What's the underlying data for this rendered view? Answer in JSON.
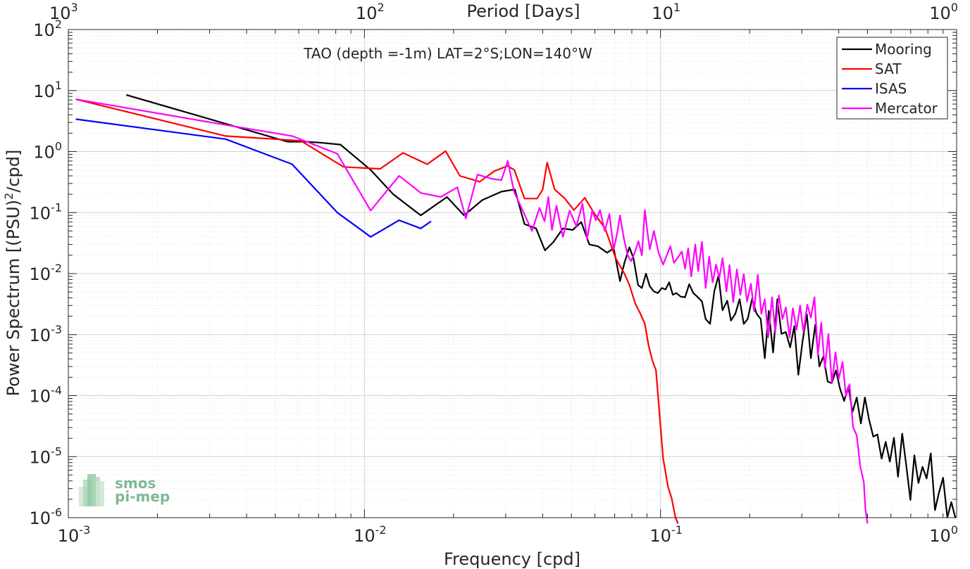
{
  "chart_data": {
    "type": "line",
    "title": "TAO (depth =-1m) LAT=2°S;LON=140°W",
    "xlabel": "Frequency [cpd]",
    "ylabel": "Power Spectrum [(PSU)",
    "ylabel_sup": "2",
    "ylabel_tail": "/cpd]",
    "top_xlabel": "Period [Days]",
    "xscale": "log",
    "yscale": "log",
    "xlim": [
      0.001,
      1
    ],
    "ylim": [
      1e-06,
      100
    ],
    "grid": true,
    "legend_position": "top-right",
    "x_ticks": [
      {
        "value": 0.001,
        "base": "10",
        "exp": "-3"
      },
      {
        "value": 0.01,
        "base": "10",
        "exp": "-2"
      },
      {
        "value": 0.1,
        "base": "10",
        "exp": "-1"
      },
      {
        "value": 1,
        "base": "10",
        "exp": "0"
      }
    ],
    "y_ticks": [
      {
        "value": 1e-06,
        "base": "10",
        "exp": "-6"
      },
      {
        "value": 1e-05,
        "base": "10",
        "exp": "-5"
      },
      {
        "value": 0.0001,
        "base": "10",
        "exp": "-4"
      },
      {
        "value": 0.001,
        "base": "10",
        "exp": "-3"
      },
      {
        "value": 0.01,
        "base": "10",
        "exp": "-2"
      },
      {
        "value": 0.1,
        "base": "10",
        "exp": "-1"
      },
      {
        "value": 1,
        "base": "10",
        "exp": "0"
      },
      {
        "value": 10,
        "base": "10",
        "exp": "1"
      },
      {
        "value": 100,
        "base": "10",
        "exp": "2"
      }
    ],
    "top_ticks": [
      {
        "period": 1000,
        "base": "10",
        "exp": "3"
      },
      {
        "period": 100,
        "base": "10",
        "exp": "2"
      },
      {
        "period": 10,
        "base": "10",
        "exp": "1"
      },
      {
        "period": 1,
        "base": "10",
        "exp": "0"
      }
    ],
    "series": [
      {
        "name": "Mooring",
        "color": "#000000",
        "x": [
          0.00157,
          0.0055,
          0.0063,
          0.0071,
          0.0083,
          0.0105,
          0.0125,
          0.0155,
          0.019,
          0.0217,
          0.025,
          0.029,
          0.0322,
          0.0347,
          0.038,
          0.0407,
          0.0435,
          0.0468,
          0.0505,
          0.054,
          0.0575,
          0.0615,
          0.066,
          0.0695,
          0.073,
          0.0755,
          0.0785,
          0.081,
          0.084,
          0.0865,
          0.0893,
          0.092,
          0.095,
          0.098,
          0.101,
          0.104,
          0.107,
          0.11,
          0.113,
          0.117,
          0.121,
          0.125,
          0.129,
          0.133,
          0.138,
          0.142,
          0.147,
          0.152,
          0.157,
          0.162,
          0.168,
          0.173,
          0.179,
          0.185,
          0.191,
          0.197,
          0.204,
          0.211,
          0.218,
          0.225,
          0.232,
          0.24,
          0.248,
          0.256,
          0.265,
          0.274,
          0.283,
          0.292,
          0.302,
          0.312,
          0.322,
          0.333,
          0.344,
          0.355,
          0.367,
          0.379,
          0.391,
          0.404,
          0.417,
          0.431,
          0.445,
          0.46,
          0.475,
          0.49,
          0.506,
          0.523,
          0.54,
          0.558,
          0.576,
          0.595,
          0.614,
          0.634,
          0.655,
          0.676,
          0.698,
          0.72,
          0.743,
          0.767,
          0.792,
          0.818,
          0.845,
          0.872,
          0.9,
          0.93,
          0.96,
          0.99
        ],
        "y": [
          8.5,
          1.45,
          1.45,
          1.4,
          1.3,
          0.5,
          0.2,
          0.09,
          0.18,
          0.09,
          0.16,
          0.22,
          0.24,
          0.065,
          0.055,
          0.024,
          0.033,
          0.055,
          0.052,
          0.07,
          0.03,
          0.028,
          0.022,
          0.026,
          0.0075,
          0.015,
          0.027,
          0.018,
          0.0065,
          0.0058,
          0.01,
          0.0062,
          0.0051,
          0.0048,
          0.0058,
          0.0055,
          0.0072,
          0.0045,
          0.0048,
          0.0042,
          0.0041,
          0.0067,
          0.0048,
          0.0042,
          0.0035,
          0.0018,
          0.0015,
          0.0052,
          0.0092,
          0.0025,
          0.0036,
          0.0017,
          0.0022,
          0.0038,
          0.0015,
          0.0018,
          0.0039,
          0.0022,
          0.0018,
          0.00041,
          0.00245,
          0.00051,
          0.0038,
          0.00103,
          0.0011,
          0.00062,
          0.00138,
          0.00022,
          0.00079,
          0.00216,
          0.00041,
          0.00145,
          0.0003,
          0.00044,
          0.00017,
          0.00016,
          0.00026,
          0.00013,
          8.2e-05,
          0.00014,
          5.4e-05,
          9.3e-05,
          3.5e-05,
          9.3e-05,
          4.1e-05,
          2.13e-05,
          2.31e-05,
          9.3e-06,
          1.75e-05,
          8.3e-06,
          2.04e-05,
          4.7e-06,
          2.38e-05,
          7.2e-06,
          1.95e-06,
          1.05e-05,
          3.7e-06,
          6.8e-06,
          4.4e-06,
          1.13e-05,
          1.33e-06,
          2.58e-06,
          4.5e-06,
          1.01e-06,
          1.8e-06,
          1e-06
        ]
      },
      {
        "name": "SAT",
        "color": "#ff0000",
        "x": [
          0.00106,
          0.0034,
          0.005,
          0.0061,
          0.0085,
          0.0113,
          0.0135,
          0.0163,
          0.0188,
          0.021,
          0.0245,
          0.0275,
          0.0304,
          0.0321,
          0.0347,
          0.0383,
          0.04,
          0.0414,
          0.0439,
          0.0475,
          0.051,
          0.0555,
          0.0595,
          0.065,
          0.0705,
          0.0755,
          0.0785,
          0.0822,
          0.0855,
          0.0885,
          0.0912,
          0.0938,
          0.0965,
          0.0995,
          0.102,
          0.106,
          0.109,
          0.1122,
          0.1145
        ],
        "y": [
          7.2,
          1.8,
          1.6,
          1.5,
          0.56,
          0.52,
          0.95,
          0.62,
          1.02,
          0.4,
          0.32,
          0.48,
          0.58,
          0.5,
          0.17,
          0.17,
          0.24,
          0.66,
          0.24,
          0.17,
          0.11,
          0.175,
          0.1,
          0.055,
          0.018,
          0.01,
          0.0065,
          0.0032,
          0.0022,
          0.0015,
          0.00065,
          0.00038,
          0.00026,
          4.2e-05,
          9.5e-06,
          3.2e-06,
          2.1e-06,
          1.02e-06,
          8e-07
        ]
      },
      {
        "name": "ISAS",
        "color": "#0000ff",
        "x": [
          0.00106,
          0.0034,
          0.0057,
          0.0081,
          0.0105,
          0.0131,
          0.0155,
          0.0168
        ],
        "y": [
          3.4,
          1.6,
          0.62,
          0.1,
          0.04,
          0.075,
          0.055,
          0.072
        ]
      },
      {
        "name": "Mercator",
        "color": "#ff00ff",
        "x": [
          0.00106,
          0.0033,
          0.0057,
          0.0081,
          0.0105,
          0.0131,
          0.0155,
          0.0181,
          0.0206,
          0.022,
          0.0241,
          0.0268,
          0.029,
          0.0305,
          0.032,
          0.0345,
          0.0368,
          0.039,
          0.0406,
          0.0418,
          0.043,
          0.0445,
          0.0468,
          0.0493,
          0.052,
          0.0545,
          0.0565,
          0.0588,
          0.0605,
          0.0625,
          0.0648,
          0.0672,
          0.0695,
          0.0715,
          0.073,
          0.0752,
          0.0775,
          0.0795,
          0.0818,
          0.0842,
          0.0865,
          0.0885,
          0.0905,
          0.092,
          0.095,
          0.0985,
          0.102,
          0.105,
          0.108,
          0.111,
          0.115,
          0.118,
          0.121,
          0.124,
          0.127,
          0.131,
          0.134,
          0.138,
          0.142,
          0.146,
          0.15,
          0.154,
          0.158,
          0.162,
          0.167,
          0.171,
          0.176,
          0.181,
          0.186,
          0.191,
          0.196,
          0.202,
          0.207,
          0.213,
          0.219,
          0.225,
          0.231,
          0.238,
          0.244,
          0.251,
          0.258,
          0.265,
          0.273,
          0.28,
          0.288,
          0.296,
          0.304,
          0.313,
          0.322,
          0.331,
          0.34,
          0.349,
          0.359,
          0.369,
          0.379,
          0.39,
          0.4,
          0.412,
          0.423,
          0.435,
          0.447,
          0.46,
          0.473,
          0.486,
          0.492,
          0.5
        ],
        "y": [
          7.2,
          2.8,
          1.8,
          0.92,
          0.108,
          0.4,
          0.21,
          0.18,
          0.26,
          0.08,
          0.42,
          0.36,
          0.34,
          0.7,
          0.22,
          0.1,
          0.05,
          0.12,
          0.072,
          0.18,
          0.052,
          0.13,
          0.04,
          0.108,
          0.06,
          0.14,
          0.037,
          0.108,
          0.075,
          0.11,
          0.05,
          0.095,
          0.025,
          0.048,
          0.09,
          0.038,
          0.02,
          0.016,
          0.022,
          0.034,
          0.02,
          0.11,
          0.045,
          0.025,
          0.05,
          0.022,
          0.014,
          0.02,
          0.028,
          0.015,
          0.019,
          0.023,
          0.012,
          0.026,
          0.009,
          0.03,
          0.011,
          0.033,
          0.0058,
          0.019,
          0.0072,
          0.014,
          0.0085,
          0.018,
          0.0051,
          0.0138,
          0.0034,
          0.0117,
          0.0045,
          0.0098,
          0.0035,
          0.0068,
          0.0024,
          0.0095,
          0.0022,
          0.0038,
          0.0009,
          0.0041,
          0.0011,
          0.0044,
          0.0018,
          0.0028,
          0.0009,
          0.0027,
          0.0012,
          0.003,
          0.0011,
          0.0031,
          0.0019,
          0.0041,
          0.00046,
          0.00157,
          0.00028,
          0.00102,
          0.000159,
          0.000515,
          0.000187,
          0.000358,
          9.8e-05,
          0.000154,
          3.05e-05,
          2.22e-05,
          6.8e-06,
          3.8e-06,
          1.4e-06,
          8e-07
        ]
      }
    ]
  },
  "logo": {
    "line1": "smos",
    "line2": "pi-mep"
  }
}
